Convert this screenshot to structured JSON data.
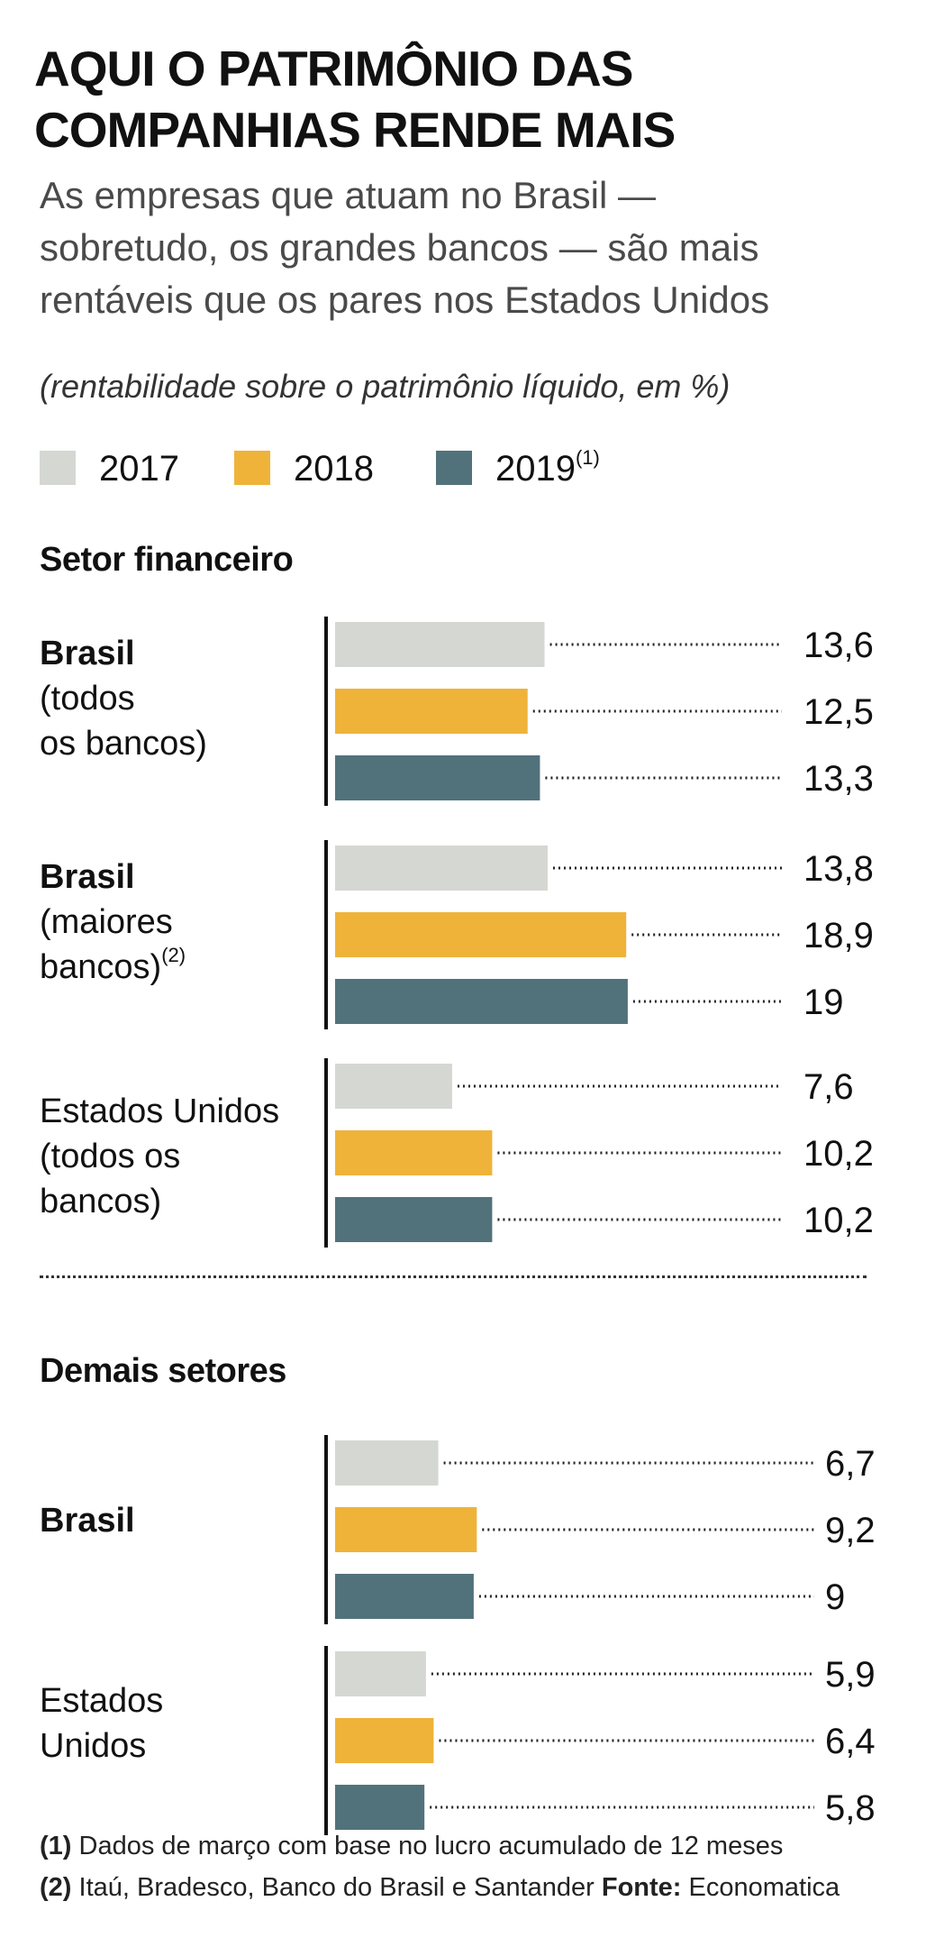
{
  "header": {
    "title_lines": [
      "AQUI O PATRIMÔNIO DAS",
      "COMPANHIAS RENDE MAIS"
    ],
    "subtitle_lines": [
      "As empresas que atuam no Brasil —",
      "sobretudo, os grandes bancos — são mais",
      "rentáveis que os pares nos Estados Unidos"
    ],
    "unit_note": "(rentabilidade sobre o patrimônio líquido, em %)"
  },
  "legend": [
    {
      "label": "2017",
      "sup": "",
      "color": "#d5d8d2"
    },
    {
      "label": "2018",
      "sup": "",
      "color": "#efb33a"
    },
    {
      "label": "2019",
      "sup": "(1)",
      "color": "#52727b"
    }
  ],
  "chart_data": {
    "type": "bar",
    "orientation": "horizontal",
    "title": "AQUI O PATRIMÔNIO DAS COMPANHIAS RENDE MAIS",
    "subtitle": "As empresas que atuam no Brasil — sobretudo, os grandes bancos — são mais rentáveis que os pares nos Estados Unidos",
    "xlabel": "rentabilidade sobre o patrimônio líquido, em %",
    "series_names": [
      "2017",
      "2018",
      "2019(1)"
    ],
    "sections": [
      {
        "title": "Setor financeiro",
        "groups": [
          {
            "label_lines": [
              {
                "text": "Brasil",
                "bold": true
              },
              {
                "text": "(todos",
                "bold": false
              },
              {
                "text": "os bancos)",
                "bold": false
              }
            ],
            "values": [
              13.6,
              12.5,
              13.3
            ],
            "value_labels": [
              "13,6",
              "12,5",
              "13,3"
            ]
          },
          {
            "label_lines": [
              {
                "text": "Brasil",
                "bold": true
              },
              {
                "text": "(maiores",
                "bold": false
              },
              {
                "text": "bancos)",
                "bold": false,
                "sup": "(2)"
              }
            ],
            "values": [
              13.8,
              18.9,
              19
            ],
            "value_labels": [
              "13,8",
              "18,9",
              "19"
            ]
          },
          {
            "label_lines": [
              {
                "text": "Estados Unidos",
                "bold": false
              },
              {
                "text": "(todos os",
                "bold": false
              },
              {
                "text": "bancos)",
                "bold": false
              }
            ],
            "values": [
              7.6,
              10.2,
              10.2
            ],
            "value_labels": [
              "7,6",
              "10,2",
              "10,2"
            ]
          }
        ]
      },
      {
        "title": "Demais setores",
        "groups": [
          {
            "label_lines": [
              {
                "text": "Brasil",
                "bold": true
              }
            ],
            "values": [
              6.7,
              9.2,
              9
            ],
            "value_labels": [
              "6,7",
              "9,2",
              "9"
            ]
          },
          {
            "label_lines": [
              {
                "text": "Estados",
                "bold": false
              },
              {
                "text": "Unidos",
                "bold": false
              }
            ],
            "values": [
              5.9,
              6.4,
              5.8
            ],
            "value_labels": [
              "5,9",
              "6,4",
              "5,8"
            ]
          }
        ]
      }
    ]
  },
  "footnotes": [
    {
      "mark": "(1)",
      "text": " Dados de março com base no lucro acumulado de 12 meses",
      "source_label": "",
      "source_text": ""
    },
    {
      "mark": "(2)",
      "text": " Itaú, Bradesco, Banco do Brasil e Santander ",
      "source_label": "Fonte:",
      "source_text": " Economatica"
    }
  ]
}
